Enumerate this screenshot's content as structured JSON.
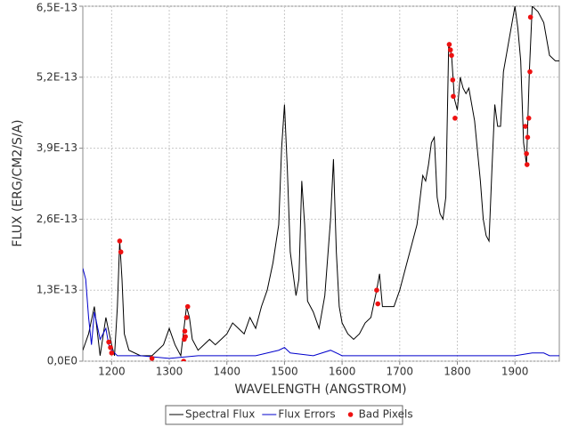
{
  "chart_data": {
    "type": "line",
    "xlabel": "WAVELENGTH (ANGSTROM)",
    "ylabel": "FLUX (ERG/CM2/S/A)",
    "xlim": [
      1150,
      1977
    ],
    "ylim": [
      0,
      6.5e-13
    ],
    "xticks": [
      1200,
      1300,
      1400,
      1500,
      1600,
      1700,
      1800,
      1900
    ],
    "yticks": [
      {
        "value": 0,
        "label": "0,0E0"
      },
      {
        "value": 1.3e-13,
        "label": "1,3E-13"
      },
      {
        "value": 2.6e-13,
        "label": "2,6E-13"
      },
      {
        "value": 3.9e-13,
        "label": "3,9E-13"
      },
      {
        "value": 5.2e-13,
        "label": "5,2E-13"
      },
      {
        "value": 6.5e-13,
        "label": "6,5E-13"
      }
    ],
    "grid": true,
    "legend": "bottom",
    "series": [
      {
        "name": "Spectral Flux",
        "color": "#000000",
        "x": [
          1150,
          1160,
          1170,
          1180,
          1190,
          1200,
          1205,
          1210,
          1214,
          1218,
          1222,
          1230,
          1250,
          1270,
          1290,
          1300,
          1310,
          1320,
          1330,
          1335,
          1340,
          1350,
          1360,
          1370,
          1380,
          1390,
          1400,
          1410,
          1420,
          1430,
          1440,
          1450,
          1460,
          1470,
          1480,
          1490,
          1495,
          1500,
          1505,
          1510,
          1515,
          1520,
          1525,
          1530,
          1535,
          1540,
          1550,
          1560,
          1570,
          1580,
          1585,
          1590,
          1595,
          1600,
          1610,
          1620,
          1630,
          1640,
          1650,
          1660,
          1665,
          1670,
          1680,
          1690,
          1700,
          1710,
          1720,
          1730,
          1740,
          1745,
          1750,
          1755,
          1760,
          1765,
          1770,
          1775,
          1780,
          1785,
          1790,
          1795,
          1800,
          1805,
          1810,
          1815,
          1820,
          1830,
          1840,
          1845,
          1850,
          1855,
          1860,
          1865,
          1870,
          1875,
          1880,
          1890,
          1895,
          1900,
          1905,
          1910,
          1915,
          1920,
          1925,
          1930,
          1940,
          1950,
          1960,
          1970,
          1977
        ],
        "values": [
          2e-14,
          5e-14,
          1e-13,
          1e-14,
          8e-14,
          3e-14,
          1e-14,
          1e-13,
          2.2e-13,
          1.5e-13,
          5e-14,
          2e-14,
          1e-14,
          1e-14,
          3e-14,
          6e-14,
          3e-14,
          1e-14,
          1e-13,
          8e-14,
          4e-14,
          2e-14,
          3e-14,
          4e-14,
          3e-14,
          4e-14,
          5e-14,
          7e-14,
          6e-14,
          5e-14,
          8e-14,
          6e-14,
          1e-13,
          1.3e-13,
          1.8e-13,
          2.5e-13,
          3.9e-13,
          4.7e-13,
          3.5e-13,
          2e-13,
          1.6e-13,
          1.2e-13,
          1.5e-13,
          3.3e-13,
          2.5e-13,
          1.1e-13,
          9e-14,
          6e-14,
          1.2e-13,
          2.6e-13,
          3.7e-13,
          2e-13,
          1e-13,
          7e-14,
          5e-14,
          4e-14,
          5e-14,
          7e-14,
          8e-14,
          1.3e-13,
          1.6e-13,
          1e-13,
          1e-13,
          1e-13,
          1.3e-13,
          1.7e-13,
          2.1e-13,
          2.5e-13,
          3.4e-13,
          3.3e-13,
          3.6e-13,
          4e-13,
          4.1e-13,
          3e-13,
          2.7e-13,
          2.6e-13,
          3e-13,
          5.8e-13,
          5.6e-13,
          4.8e-13,
          4.6e-13,
          5.2e-13,
          5e-13,
          4.9e-13,
          5e-13,
          4.4e-13,
          3.3e-13,
          2.6e-13,
          2.3e-13,
          2.2e-13,
          3.5e-13,
          4.7e-13,
          4.3e-13,
          4.3e-13,
          5.3e-13,
          5.9e-13,
          6.2e-13,
          6.5e-13,
          6.1e-13,
          5.5e-13,
          4e-13,
          3.6e-13,
          5.3e-13,
          6.5e-13,
          6.4e-13,
          6.2e-13,
          5.6e-13,
          5.5e-13,
          5.5e-13
        ]
      },
      {
        "name": "Flux Errors",
        "color": "#0000cc",
        "x": [
          1150,
          1155,
          1160,
          1165,
          1170,
          1180,
          1190,
          1195,
          1200,
          1210,
          1250,
          1300,
          1350,
          1400,
          1450,
          1490,
          1500,
          1510,
          1550,
          1580,
          1600,
          1650,
          1700,
          1750,
          1800,
          1850,
          1900,
          1930,
          1950,
          1960,
          1977
        ],
        "values": [
          1.7e-13,
          1.5e-13,
          8e-14,
          3e-14,
          9e-14,
          4e-14,
          6e-14,
          3e-14,
          2e-14,
          1e-14,
          1e-14,
          5e-15,
          1e-14,
          1e-14,
          1e-14,
          2e-14,
          2.5e-14,
          1.5e-14,
          1e-14,
          2e-14,
          1e-14,
          1e-14,
          1e-14,
          1e-14,
          1e-14,
          1e-14,
          1e-14,
          1.5e-14,
          1.5e-14,
          1e-14,
          1e-14
        ]
      },
      {
        "name": "Bad Pixels",
        "color": "#ee1111",
        "type": "scatter",
        "x": [
          1195,
          1198,
          1200,
          1214,
          1216,
          1270,
          1325,
          1326,
          1327,
          1328,
          1330,
          1332,
          1660,
          1662,
          1786,
          1788,
          1790,
          1792,
          1793,
          1796,
          1918,
          1920,
          1921,
          1922,
          1924,
          1926,
          1927
        ],
        "values": [
          3.5e-14,
          2.5e-14,
          1.5e-14,
          2.2e-13,
          2e-13,
          5e-15,
          0,
          4e-14,
          5.5e-14,
          4.5e-14,
          8e-14,
          1e-13,
          1.3e-13,
          1.05e-13,
          5.8e-13,
          5.7e-13,
          5.6e-13,
          5.15e-13,
          4.85e-13,
          4.45e-13,
          4.3e-13,
          3.8e-13,
          3.6e-13,
          4.1e-13,
          4.45e-13,
          5.3e-13,
          6.3e-13
        ]
      }
    ]
  }
}
